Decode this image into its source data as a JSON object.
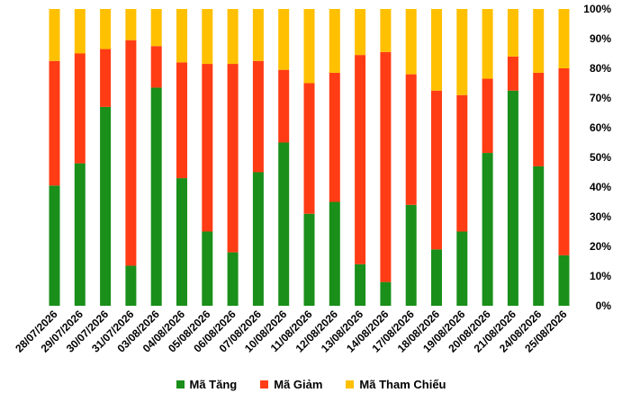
{
  "chart_data": {
    "type": "bar",
    "stacked": "percent",
    "categories": [
      "28/07/2026",
      "29/07/2026",
      "30/07/2026",
      "31/07/2026",
      "03/08/2026",
      "04/08/2026",
      "05/08/2026",
      "06/08/2026",
      "07/08/2026",
      "10/08/2026",
      "11/08/2026",
      "12/08/2026",
      "13/08/2026",
      "14/08/2026",
      "17/08/2026",
      "18/08/2026",
      "19/08/2026",
      "20/08/2026",
      "21/08/2026",
      "24/08/2026",
      "25/08/2026"
    ],
    "series": [
      {
        "name": "Mã Tăng",
        "color": "#1a8f1a",
        "values": [
          40.5,
          48,
          67,
          13.5,
          73.5,
          43,
          25,
          18,
          45,
          55,
          31,
          35,
          14,
          8,
          34,
          19,
          25,
          51.5,
          72.5,
          47,
          17
        ]
      },
      {
        "name": "Mã Giảm",
        "color": "#ff3c14",
        "values": [
          42,
          37,
          19.5,
          76,
          14,
          39,
          56.5,
          63.5,
          37.5,
          24.5,
          44,
          43.5,
          70.5,
          77.5,
          44,
          53.5,
          46,
          25,
          11.5,
          31.5,
          63
        ]
      },
      {
        "name": "Mã Tham Chiếu",
        "color": "#ffc000",
        "values": [
          17.5,
          15,
          13.5,
          10.5,
          12.5,
          18,
          18.5,
          18.5,
          17.5,
          20.5,
          25,
          21.5,
          15.5,
          14.5,
          22,
          27.5,
          29,
          23.5,
          16,
          21.5,
          20
        ]
      }
    ],
    "y_ticks": [
      "0%",
      "10%",
      "20%",
      "30%",
      "40%",
      "50%",
      "60%",
      "70%",
      "80%",
      "90%",
      "100%"
    ],
    "ylim": [
      0,
      100
    ],
    "grid": false,
    "legend_position": "bottom"
  }
}
